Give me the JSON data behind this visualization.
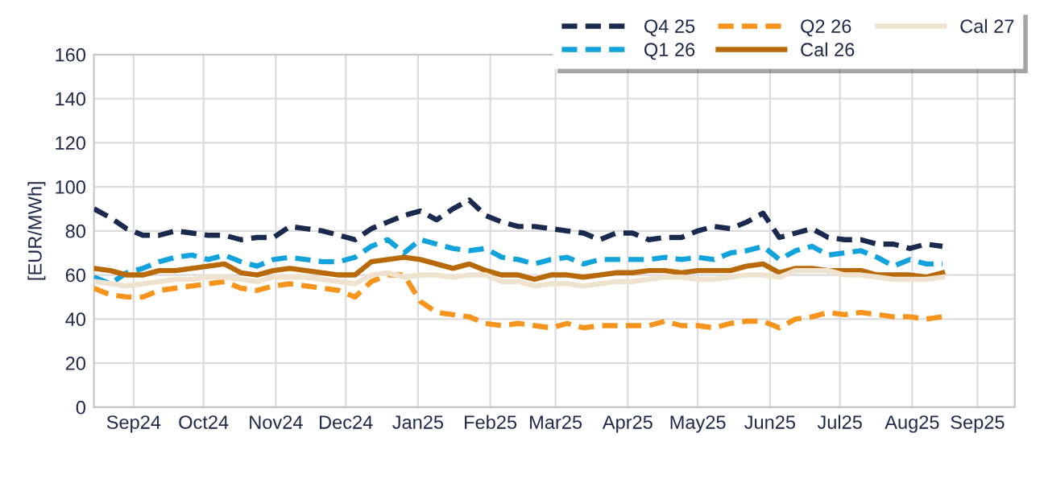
{
  "chart_data": {
    "type": "line",
    "ylabel": "[EUR/MWh]",
    "x": [
      "2024-08-29",
      "2024-09-05",
      "2024-09-12",
      "2024-09-19",
      "2024-09-26",
      "2024-10-03",
      "2024-10-10",
      "2024-10-17",
      "2024-10-24",
      "2024-10-31",
      "2024-11-07",
      "2024-11-14",
      "2024-11-21",
      "2024-11-28",
      "2024-12-05",
      "2024-12-12",
      "2024-12-19",
      "2024-12-26",
      "2025-01-02",
      "2025-01-09",
      "2025-01-16",
      "2025-01-23",
      "2025-01-30",
      "2025-02-06",
      "2025-02-13",
      "2025-02-20",
      "2025-02-27",
      "2025-03-06",
      "2025-03-13",
      "2025-03-20",
      "2025-03-27",
      "2025-04-03",
      "2025-04-10",
      "2025-04-17",
      "2025-04-24",
      "2025-05-01",
      "2025-05-08",
      "2025-05-15",
      "2025-05-22",
      "2025-05-29",
      "2025-06-05",
      "2025-06-12",
      "2025-06-19",
      "2025-06-26",
      "2025-07-03",
      "2025-07-10",
      "2025-07-17",
      "2025-07-24",
      "2025-07-31",
      "2025-08-07",
      "2025-08-14",
      "2025-08-21",
      "2025-08-28"
    ],
    "series": [
      {
        "name": "Q4 25",
        "color": "#1a2a4f",
        "line_style": "dashed",
        "values": [
          90,
          86,
          81,
          78,
          78,
          80,
          79,
          78,
          78,
          76,
          77,
          77,
          82,
          81,
          80,
          78,
          76,
          81,
          84,
          87,
          89,
          85,
          90,
          94,
          87,
          84,
          82,
          82,
          81,
          80,
          79,
          76,
          79,
          79,
          76,
          77,
          77,
          80,
          82,
          81,
          84,
          88,
          77,
          79,
          81,
          77,
          76,
          76,
          74,
          74,
          72,
          74,
          73
        ]
      },
      {
        "name": "Q1 26",
        "color": "#13a3dc",
        "line_style": "dashed",
        "values": [
          59,
          56,
          61,
          63,
          66,
          68,
          69,
          67,
          69,
          66,
          64,
          67,
          68,
          67,
          66,
          66,
          68,
          73,
          76,
          70,
          76,
          74,
          72,
          71,
          72,
          68,
          67,
          65,
          67,
          68,
          65,
          67,
          67,
          67,
          67,
          68,
          67,
          68,
          67,
          70,
          71,
          73,
          67,
          71,
          73,
          69,
          70,
          71,
          68,
          64,
          67,
          65,
          65
        ]
      },
      {
        "name": "Q2 26",
        "color": "#f7941d",
        "line_style": "dashed",
        "values": [
          54,
          51,
          50,
          50,
          53,
          54,
          55,
          56,
          57,
          54,
          53,
          55,
          56,
          55,
          54,
          53,
          50,
          57,
          60,
          60,
          48,
          43,
          42,
          41,
          38,
          37,
          38,
          37,
          36,
          38,
          36,
          37,
          37,
          37,
          37,
          39,
          37,
          37,
          36,
          38,
          39,
          39,
          36,
          40,
          41,
          43,
          42,
          43,
          42,
          41,
          41,
          40,
          41
        ]
      },
      {
        "name": "Cal 26",
        "color": "#b8690a",
        "line_style": "solid",
        "values": [
          63,
          62,
          60,
          60,
          62,
          62,
          63,
          64,
          65,
          61,
          60,
          62,
          63,
          62,
          61,
          60,
          60,
          66,
          67,
          68,
          67,
          65,
          63,
          65,
          62,
          60,
          60,
          58,
          60,
          60,
          59,
          60,
          61,
          61,
          62,
          62,
          61,
          62,
          62,
          62,
          64,
          65,
          61,
          63,
          63,
          62,
          62,
          62,
          60,
          60,
          60,
          59,
          61
        ]
      },
      {
        "name": "Cal 27",
        "color": "#efe3cf",
        "line_style": "solid",
        "values": [
          57,
          56,
          55,
          56,
          57,
          58,
          58,
          59,
          59,
          58,
          57,
          59,
          59,
          59,
          58,
          57,
          56,
          60,
          61,
          59,
          60,
          60,
          59,
          60,
          60,
          57,
          57,
          55,
          56,
          56,
          55,
          56,
          57,
          57,
          58,
          59,
          59,
          58,
          58,
          59,
          60,
          60,
          59,
          62,
          62,
          62,
          60,
          60,
          59,
          58,
          58,
          58,
          59
        ]
      }
    ],
    "xlim": [
      "2024-08-29",
      "2025-09-28"
    ],
    "xticks": [
      {
        "value": "2024-09-15",
        "label": "Sep24"
      },
      {
        "value": "2024-10-15",
        "label": "Oct24"
      },
      {
        "value": "2024-11-15",
        "label": "Nov24"
      },
      {
        "value": "2024-12-15",
        "label": "Dec24"
      },
      {
        "value": "2025-01-15",
        "label": "Jan25"
      },
      {
        "value": "2025-02-15",
        "label": "Feb25"
      },
      {
        "value": "2025-03-15",
        "label": "Mar25"
      },
      {
        "value": "2025-04-15",
        "label": "Apr25"
      },
      {
        "value": "2025-05-15",
        "label": "May25"
      },
      {
        "value": "2025-06-15",
        "label": "Jun25"
      },
      {
        "value": "2025-07-15",
        "label": "Jul25"
      },
      {
        "value": "2025-08-15",
        "label": "Aug25"
      },
      {
        "value": "2025-09-12",
        "label": "Sep25"
      }
    ],
    "ylim": [
      0,
      160
    ],
    "yticks": [
      0,
      20,
      40,
      60,
      80,
      100,
      120,
      140,
      160
    ],
    "grid": true,
    "legend": "top right",
    "marker": "none"
  }
}
